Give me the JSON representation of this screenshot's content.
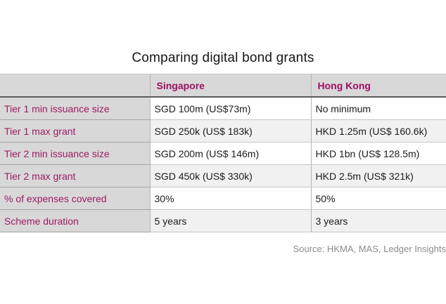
{
  "title": "Comparing digital bond grants",
  "table": {
    "header": {
      "singapore": "Singapore",
      "hong_kong": "Hong Kong"
    },
    "rows": [
      {
        "label": "Tier 1 min issuance size",
        "singapore": "SGD 100m (US$73m)",
        "hong_kong": "No minimum"
      },
      {
        "label": "Tier 1 max grant",
        "singapore": "SGD 250k (US$ 183k)",
        "hong_kong": "HKD 1.25m (US$ 160.6k)"
      },
      {
        "label": "Tier 2 min issuance size",
        "singapore": "SGD 200m (US$ 146m)",
        "hong_kong": "HKD 1bn (US$ 128.5m)"
      },
      {
        "label": "Tier 2 max grant",
        "singapore": "SGD 450k (US$ 330k)",
        "hong_kong": "HKD 2.5m (US$ 321k)"
      },
      {
        "label": "% of expenses covered",
        "singapore": "30%",
        "hong_kong": "50%"
      },
      {
        "label": "Scheme duration",
        "singapore": "5 years",
        "hong_kong": "3 years"
      }
    ]
  },
  "source": "Source: HKMA, MAS, Ledger Insights",
  "colors": {
    "accent_magenta": "#9c1c63",
    "header_label_bg": "#d8d8d8",
    "alt_row_bg": "#f1f1f1",
    "source_text": "#8b8b8b"
  },
  "chart_data": {
    "type": "table",
    "title": "Comparing digital bond grants",
    "columns": [
      "",
      "Singapore",
      "Hong Kong"
    ],
    "rows": [
      [
        "Tier 1 min issuance size",
        "SGD 100m (US$73m)",
        "No minimum"
      ],
      [
        "Tier 1 max grant",
        "SGD 250k (US$ 183k)",
        "HKD 1.25m (US$ 160.6k)"
      ],
      [
        "Tier 2 min issuance size",
        "SGD 200m (US$ 146m)",
        "HKD 1bn (US$ 128.5m)"
      ],
      [
        "Tier 2 max grant",
        "SGD 450k (US$ 330k)",
        "HKD 2.5m (US$ 321k)"
      ],
      [
        "% of expenses covered",
        "30%",
        "50%"
      ],
      [
        "Scheme duration",
        "5 years",
        "3 years"
      ]
    ],
    "source": "Source: HKMA, MAS, Ledger Insights",
    "layout_hints": {
      "label_column_shaded": true,
      "alternating_data_rows": true,
      "source_alignment": "right"
    }
  }
}
